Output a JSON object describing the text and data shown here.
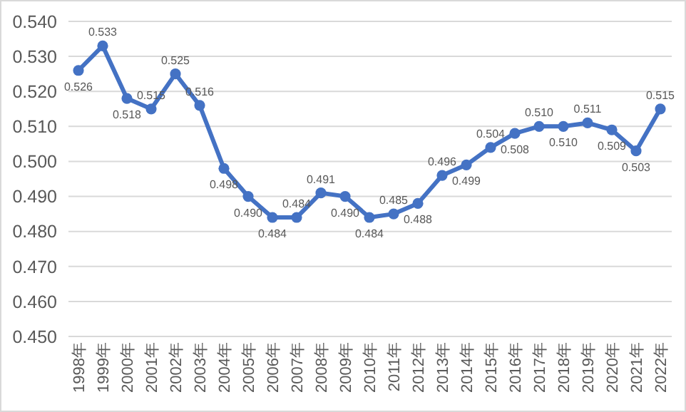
{
  "chart_data": {
    "type": "line",
    "categories": [
      "1998年",
      "1999年",
      "2000年",
      "2001年",
      "2002年",
      "2003年",
      "2004年",
      "2005年",
      "2006年",
      "2007年",
      "2008年",
      "2009年",
      "2010年",
      "2011年",
      "2012年",
      "2013年",
      "2014年",
      "2015年",
      "2016年",
      "2017年",
      "2018年",
      "2019年",
      "2020年",
      "2021年",
      "2022年"
    ],
    "series": [
      {
        "color": "#4472c4",
        "value_labels": [
          "0.526",
          "0.533",
          "0.518",
          "0.515",
          "0.525",
          "0.516",
          "0.498",
          "0.490",
          "0.484",
          "0.484",
          "0.491",
          "0.490",
          "0.484",
          "0.485",
          "0.488",
          "0.496",
          "0.499",
          "0.504",
          "0.508",
          "0.510",
          "0.510",
          "0.511",
          "0.509",
          "0.503",
          "0.515"
        ],
        "values": [
          0.526,
          0.533,
          0.518,
          0.515,
          0.525,
          0.516,
          0.498,
          0.49,
          0.484,
          0.484,
          0.491,
          0.49,
          0.484,
          0.485,
          0.488,
          0.496,
          0.499,
          0.504,
          0.508,
          0.51,
          0.51,
          0.511,
          0.509,
          0.503,
          0.515
        ]
      }
    ],
    "ylim": [
      0.45,
      0.54
    ],
    "yticks": [
      {
        "value": 0.45,
        "label": "0.450"
      },
      {
        "value": 0.46,
        "label": "0.460"
      },
      {
        "value": 0.47,
        "label": "0.470"
      },
      {
        "value": 0.48,
        "label": "0.480"
      },
      {
        "value": 0.49,
        "label": "0.490"
      },
      {
        "value": 0.5,
        "label": "0.500"
      },
      {
        "value": 0.51,
        "label": "0.510"
      },
      {
        "value": 0.52,
        "label": "0.520"
      },
      {
        "value": 0.53,
        "label": "0.530"
      },
      {
        "value": 0.54,
        "label": "0.540"
      }
    ],
    "grid": "y",
    "marker": "circle",
    "line_style": "solid"
  }
}
